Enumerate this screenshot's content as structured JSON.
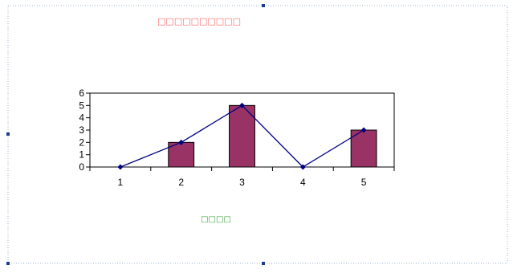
{
  "chart_data": {
    "type": "bar",
    "title": "□□□□□□□□□□",
    "legend_text": "□□□□",
    "legend_position": "bottom",
    "categories": [
      "1",
      "2",
      "3",
      "4",
      "5"
    ],
    "series": [
      {
        "kind": "bar",
        "values": [
          0,
          2,
          5,
          0,
          3
        ]
      },
      {
        "kind": "line",
        "values": [
          0,
          2,
          5,
          0,
          3
        ]
      }
    ],
    "ylim": [
      0,
      6
    ],
    "yticks": [
      "0",
      "1",
      "2",
      "3",
      "4",
      "5",
      "6"
    ],
    "grid": false,
    "colors": {
      "bar_fill": "#993366",
      "bar_edge": "#000000",
      "line": "#000080",
      "marker": "#000080",
      "frame_dots": "#9ab0cc",
      "title_color": "#ff6b6b",
      "legend_color": "#3aa63a"
    }
  }
}
